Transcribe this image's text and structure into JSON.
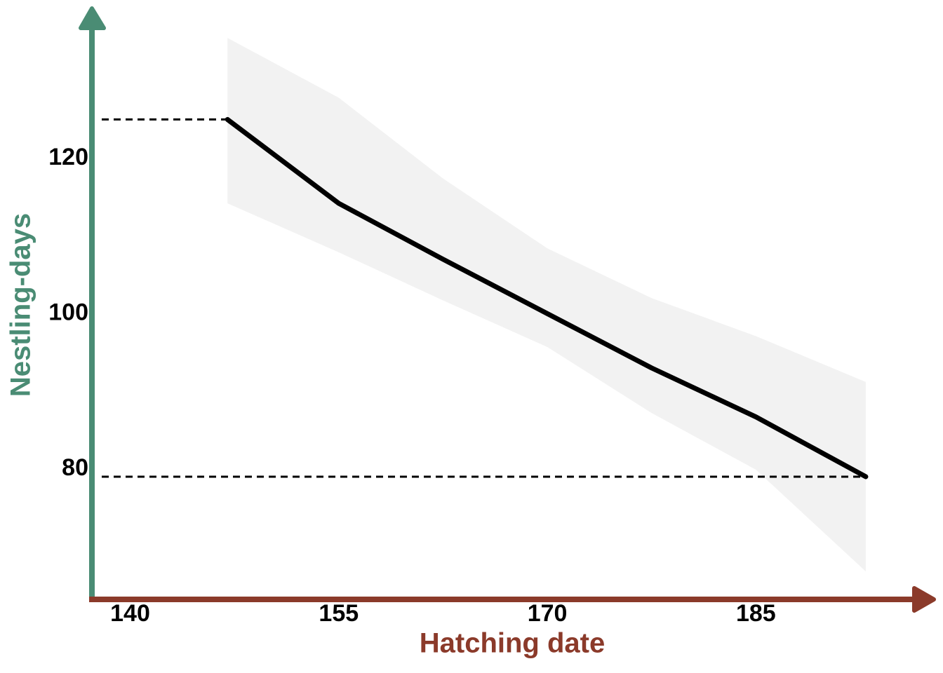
{
  "chart_data": {
    "type": "line",
    "x_label": "Hatching date",
    "y_label": "Nestling-days",
    "x": [
      147,
      155,
      162.5,
      170,
      177.5,
      185,
      192.9
    ],
    "series": [
      {
        "color": "#000000",
        "values": [
          125,
          114.2,
          107.0,
          100,
          93.0,
          86.7,
          79
        ]
      }
    ],
    "band": {
      "color": "#f2f2f2",
      "upper": [
        135.5,
        127.8,
        117.4,
        108.4,
        102,
        97.1,
        91.2
      ],
      "lower": [
        114.2,
        107.9,
        101.7,
        95.7,
        87.2,
        79.9,
        66.8
      ]
    },
    "xlim": [
      137.2,
      198
    ],
    "xticks": [
      140,
      155,
      170,
      185
    ],
    "ylim": [
      63.2,
      139.3
    ],
    "yticks": [
      80,
      100,
      120
    ],
    "x_axis_color": "#8b3a2a",
    "y_axis_color": "#4a8c74"
  }
}
